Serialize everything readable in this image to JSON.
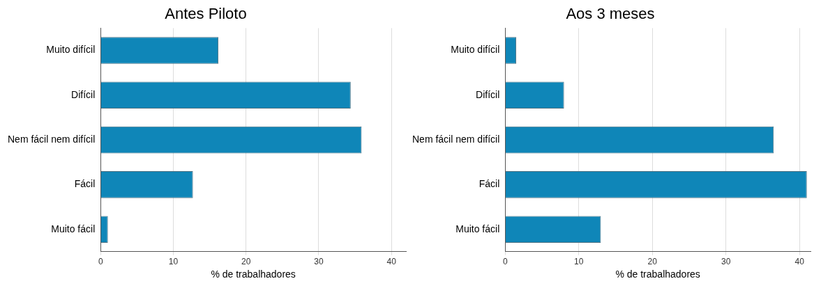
{
  "chart_data": [
    {
      "type": "bar",
      "title": "Antes Piloto",
      "orientation": "horizontal",
      "categories": [
        "Muito difícil",
        "Difícil",
        "Nem fácil nem difícil",
        "Fácil",
        "Muito fácil"
      ],
      "values": [
        16.2,
        34.4,
        35.9,
        12.7,
        1.0
      ],
      "color": "#0f86b8",
      "xlabel": "% de trabalhadores",
      "xlim": [
        0,
        42
      ],
      "xticks": [
        0,
        10,
        20,
        30,
        40
      ],
      "grid": "x"
    },
    {
      "type": "bar",
      "title": "Aos 3 meses",
      "orientation": "horizontal",
      "categories": [
        "Muito difícil",
        "Difícil",
        "Nem fácil nem difícil",
        "Fácil",
        "Muito fácil"
      ],
      "values": [
        1.5,
        8.0,
        36.5,
        41.0,
        13.0
      ],
      "color": "#0f86b8",
      "xlabel": "% de trabalhadores",
      "xlim": [
        0,
        41.5
      ],
      "xticks": [
        0,
        10,
        20,
        30,
        40
      ],
      "grid": "x"
    }
  ]
}
